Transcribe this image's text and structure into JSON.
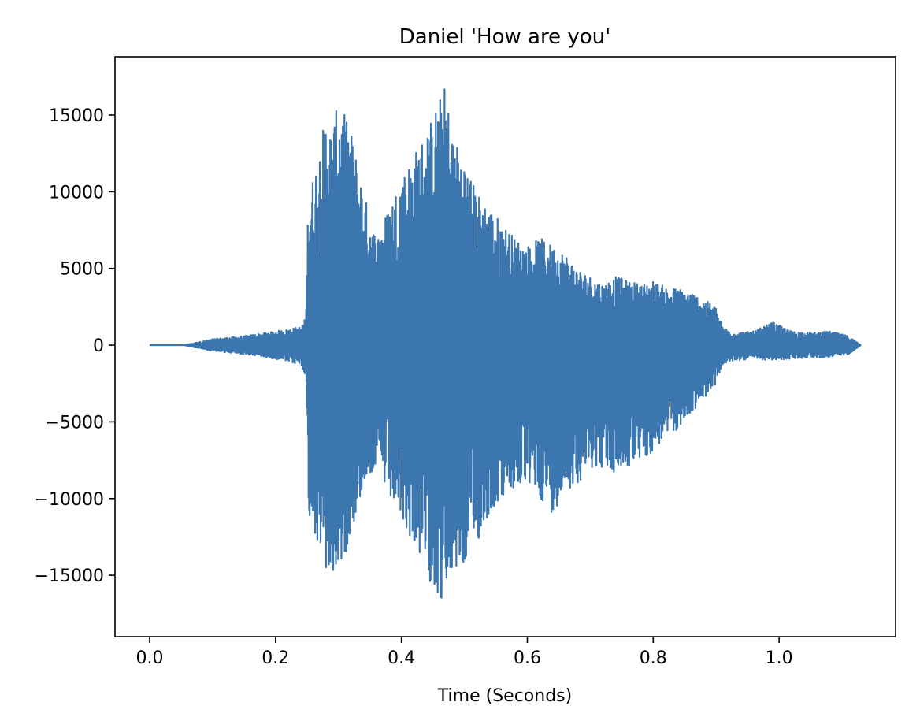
{
  "chart_data": {
    "type": "line",
    "title": "Daniel 'How are you'",
    "xlabel": "Time (Seconds)",
    "ylabel": "",
    "xlim": [
      -0.055,
      1.185
    ],
    "ylim": [
      -19000,
      18800
    ],
    "xticks": [
      0.0,
      0.2,
      0.4,
      0.6,
      0.8,
      1.0
    ],
    "xtick_labels": [
      "0.0",
      "0.2",
      "0.4",
      "0.6",
      "0.8",
      "1.0"
    ],
    "yticks": [
      -15000,
      -10000,
      -5000,
      0,
      5000,
      10000,
      15000
    ],
    "ytick_labels": [
      "−15000",
      "−10000",
      "−5000",
      "0",
      "5000",
      "10000",
      "15000"
    ],
    "grid": false,
    "legend": "none",
    "line_color": "#3b76ae",
    "series": [
      {
        "x_start": 0.0,
        "x_end": 1.13,
        "envelope_note": "speech waveform amplitude envelope (approx.)",
        "envelope_x": [
          0.0,
          0.055,
          0.1,
          0.15,
          0.2,
          0.24,
          0.248,
          0.252,
          0.26,
          0.27,
          0.28,
          0.29,
          0.3,
          0.31,
          0.32,
          0.33,
          0.34,
          0.36,
          0.38,
          0.4,
          0.42,
          0.44,
          0.46,
          0.47,
          0.48,
          0.5,
          0.52,
          0.54,
          0.56,
          0.58,
          0.6,
          0.62,
          0.64,
          0.66,
          0.68,
          0.7,
          0.72,
          0.74,
          0.76,
          0.78,
          0.8,
          0.82,
          0.84,
          0.86,
          0.88,
          0.9,
          0.91,
          0.93,
          0.96,
          0.99,
          1.02,
          1.05,
          1.08,
          1.11,
          1.12,
          1.13
        ],
        "envelope_max": [
          0,
          0,
          400,
          600,
          900,
          1200,
          1800,
          10000,
          11000,
          13000,
          15000,
          14000,
          16000,
          15000,
          14000,
          12000,
          10000,
          7000,
          9000,
          11000,
          12500,
          14000,
          16000,
          17000,
          14000,
          12000,
          10000,
          9000,
          8000,
          7000,
          6500,
          7000,
          6500,
          6000,
          5000,
          4500,
          4000,
          4500,
          4200,
          4000,
          4200,
          3800,
          3700,
          3500,
          3000,
          2500,
          1200,
          800,
          900,
          1500,
          900,
          800,
          900,
          600,
          300,
          0
        ],
        "envelope_min": [
          0,
          0,
          -400,
          -600,
          -900,
          -1300,
          -2000,
          -11000,
          -12000,
          -13500,
          -15000,
          -15500,
          -14500,
          -14000,
          -12000,
          -11000,
          -9000,
          -8000,
          -10000,
          -11500,
          -13000,
          -15000,
          -16500,
          -17500,
          -15000,
          -14500,
          -13000,
          -11000,
          -10000,
          -9500,
          -9000,
          -10000,
          -11000,
          -9500,
          -9000,
          -8000,
          -8000,
          -8500,
          -8000,
          -7500,
          -7000,
          -6000,
          -5500,
          -4500,
          -3500,
          -2500,
          -1300,
          -1000,
          -900,
          -1000,
          -900,
          -800,
          -800,
          -600,
          -300,
          0
        ]
      }
    ]
  }
}
